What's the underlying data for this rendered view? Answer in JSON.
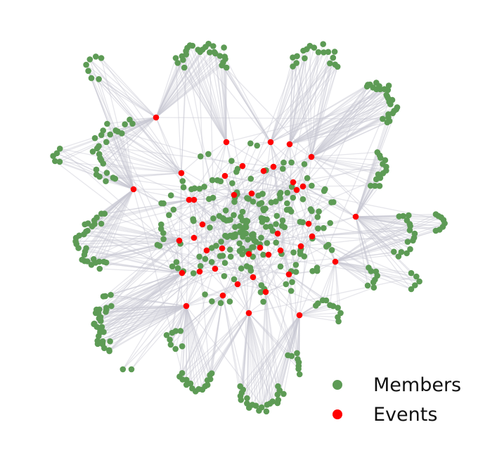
{
  "legend": {
    "members": {
      "label": "Members",
      "color": "#5d9b55"
    },
    "events": {
      "label": "Events",
      "color": "#ff0000"
    }
  },
  "edge_color": "#c8c8d2"
}
